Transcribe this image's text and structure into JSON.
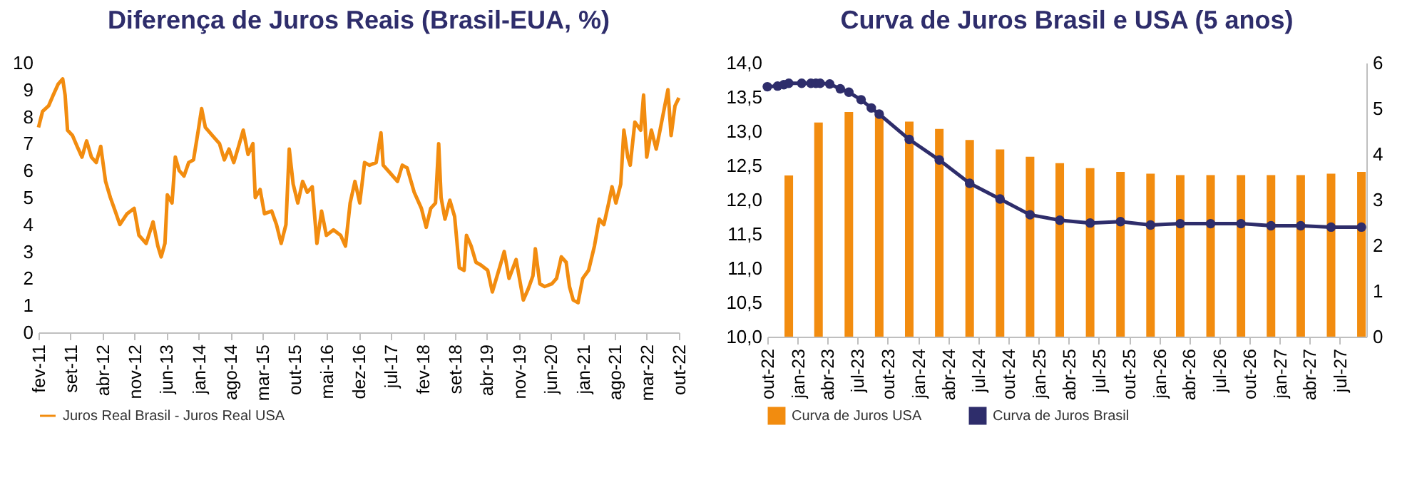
{
  "chart_data": [
    {
      "type": "line",
      "title": "Diferença de Juros Reais (Brasil-EUA, %)",
      "x": [
        "2011-02-01",
        "2011-02-28",
        "2011-04-09",
        "2011-05-10",
        "2011-06-11",
        "2011-07-12",
        "2011-07-28",
        "2011-08-13",
        "2011-09-15",
        "2011-10-16",
        "2011-11-17",
        "2011-12-18",
        "2012-01-19",
        "2012-02-20",
        "2012-03-21",
        "2012-04-22",
        "2012-05-24",
        "2012-06-25",
        "2012-07-26",
        "2012-09-12",
        "2012-10-29",
        "2012-11-30",
        "2013-01-17",
        "2013-03-04",
        "2013-04-05",
        "2013-04-27",
        "2013-05-22",
        "2013-06-07",
        "2013-07-08",
        "2013-07-30",
        "2013-08-25",
        "2013-09-26",
        "2013-10-27",
        "2013-11-28",
        "2013-12-30",
        "2014-01-21",
        "2014-02-15",
        "2014-04-03",
        "2014-05-20",
        "2014-06-21",
        "2014-07-22",
        "2014-08-23",
        "2014-09-24",
        "2014-10-25",
        "2014-11-26",
        "2014-12-28",
        "2015-01-13",
        "2015-02-14",
        "2015-03-15",
        "2015-05-02",
        "2015-06-03",
        "2015-07-04",
        "2015-08-05",
        "2015-08-27",
        "2015-09-22",
        "2015-10-23",
        "2015-11-24",
        "2015-12-25",
        "2016-01-27",
        "2016-02-27",
        "2016-03-29",
        "2016-04-30",
        "2016-06-16",
        "2016-08-03",
        "2016-09-04",
        "2016-10-05",
        "2016-11-06",
        "2016-12-08",
        "2017-01-09",
        "2017-02-10",
        "2017-03-27",
        "2017-04-28",
        "2017-05-13",
        "2017-06-30",
        "2017-08-16",
        "2017-09-17",
        "2017-10-19",
        "2017-12-05",
        "2018-01-22",
        "2018-02-23",
        "2018-03-25",
        "2018-04-26",
        "2018-05-17",
        "2018-06-02",
        "2018-06-28",
        "2018-07-30",
        "2018-08-31",
        "2018-10-01",
        "2018-11-02",
        "2018-11-18",
        "2018-12-19",
        "2019-01-20",
        "2019-02-21",
        "2019-04-08",
        "2019-05-09",
        "2019-06-26",
        "2019-07-27",
        "2019-08-28",
        "2019-10-14",
        "2019-12-01",
        "2020-01-02",
        "2020-02-03",
        "2020-02-19",
        "2020-03-20",
        "2020-04-21",
        "2020-06-08",
        "2020-07-09",
        "2020-08-10",
        "2020-09-11",
        "2020-10-03",
        "2020-10-28",
        "2020-11-29",
        "2020-12-30",
        "2021-02-07",
        "2021-03-18",
        "2021-04-19",
        "2021-05-20",
        "2021-06-21",
        "2021-07-13",
        "2021-08-08",
        "2021-09-09",
        "2021-09-30",
        "2021-10-26",
        "2021-11-11",
        "2021-12-12",
        "2022-01-20",
        "2022-02-08",
        "2022-03-01",
        "2022-04-01",
        "2022-05-03",
        "2022-05-25",
        "2022-07-20",
        "2022-08-10",
        "2022-09-05",
        "2022-10-01"
      ],
      "series": [
        {
          "name": "Juros Real Brasil - Juros Real USA",
          "color": "#f28c0f",
          "values": [
            7.6,
            8.2,
            8.4,
            8.8,
            9.2,
            9.4,
            8.8,
            7.5,
            7.3,
            6.9,
            6.5,
            7.1,
            6.5,
            6.3,
            6.9,
            5.6,
            5.0,
            4.5,
            4.0,
            4.4,
            4.6,
            3.6,
            3.3,
            4.1,
            3.2,
            2.8,
            3.3,
            5.1,
            4.8,
            6.5,
            6.0,
            5.8,
            6.3,
            6.4,
            7.5,
            8.3,
            7.6,
            7.3,
            7.0,
            6.4,
            6.8,
            6.3,
            6.9,
            7.5,
            6.6,
            7.0,
            5.0,
            5.3,
            4.4,
            4.5,
            4.0,
            3.3,
            4.0,
            6.8,
            5.5,
            4.8,
            5.6,
            5.2,
            5.4,
            3.3,
            4.5,
            3.6,
            3.8,
            3.6,
            3.2,
            4.8,
            5.6,
            4.8,
            6.3,
            6.2,
            6.3,
            7.4,
            6.2,
            5.9,
            5.6,
            6.2,
            6.1,
            5.2,
            4.6,
            3.9,
            4.6,
            4.8,
            7.0,
            5.0,
            4.2,
            4.9,
            4.3,
            2.4,
            2.3,
            3.6,
            3.2,
            2.6,
            2.5,
            2.3,
            1.5,
            2.4,
            3.0,
            2.0,
            2.7,
            1.2,
            1.6,
            2.1,
            3.1,
            1.8,
            1.7,
            1.8,
            2.0,
            2.8,
            2.6,
            1.7,
            1.2,
            1.1,
            2.0,
            2.3,
            3.2,
            4.2,
            4.0,
            4.8,
            5.4,
            4.8,
            5.5,
            7.5,
            6.5,
            6.2,
            7.8,
            7.5,
            8.8,
            6.5,
            7.5,
            6.8,
            7.4,
            9.0,
            7.3,
            8.4,
            8.7
          ]
        }
      ],
      "xlim": [
        "2011-02-01",
        "2022-10-01"
      ],
      "xticks": [
        {
          "value": "2011-02-01",
          "label": "fev-11"
        },
        {
          "value": "2011-09-01",
          "label": "set-11"
        },
        {
          "value": "2012-04-01",
          "label": "abr-12"
        },
        {
          "value": "2012-11-01",
          "label": "nov-12"
        },
        {
          "value": "2013-06-01",
          "label": "jun-13"
        },
        {
          "value": "2014-01-01",
          "label": "jan-14"
        },
        {
          "value": "2014-08-01",
          "label": "ago-14"
        },
        {
          "value": "2015-03-01",
          "label": "mar-15"
        },
        {
          "value": "2015-10-01",
          "label": "out-15"
        },
        {
          "value": "2016-05-01",
          "label": "mai-16"
        },
        {
          "value": "2016-12-01",
          "label": "dez-16"
        },
        {
          "value": "2017-07-01",
          "label": "jul-17"
        },
        {
          "value": "2018-02-01",
          "label": "fev-18"
        },
        {
          "value": "2018-09-01",
          "label": "set-18"
        },
        {
          "value": "2019-04-01",
          "label": "abr-19"
        },
        {
          "value": "2019-11-01",
          "label": "nov-19"
        },
        {
          "value": "2020-06-01",
          "label": "jun-20"
        },
        {
          "value": "2021-01-01",
          "label": "jan-21"
        },
        {
          "value": "2021-08-01",
          "label": "ago-21"
        },
        {
          "value": "2022-03-01",
          "label": "mar-22"
        },
        {
          "value": "2022-10-01",
          "label": "out-22"
        }
      ],
      "ylim": [
        0,
        10
      ],
      "yticks": [
        0,
        1,
        2,
        3,
        4,
        5,
        6,
        7,
        8,
        9,
        10
      ],
      "grid": false,
      "legend": "bottom"
    },
    {
      "type": "bar",
      "title": "Curva de Juros Brasil e USA (5 anos)",
      "series": [
        {
          "name": "Curva de Juros USA",
          "axis": "y2",
          "color": "#f28c0f",
          "x": [
            "2022-12-05",
            "2023-03-05",
            "2023-06-05",
            "2023-09-05",
            "2023-12-05",
            "2024-03-05",
            "2024-06-05",
            "2024-09-05",
            "2024-12-05",
            "2025-03-05",
            "2025-06-05",
            "2025-09-05",
            "2025-12-05",
            "2026-03-05",
            "2026-06-05",
            "2026-09-05",
            "2026-12-05",
            "2027-03-05",
            "2027-06-05",
            "2027-09-05"
          ],
          "values": [
            3.53,
            4.69,
            4.92,
            4.9,
            4.71,
            4.55,
            4.31,
            4.1,
            3.94,
            3.8,
            3.69,
            3.61,
            3.57,
            3.54,
            3.54,
            3.54,
            3.54,
            3.54,
            3.57,
            3.61
          ]
        },
        {
          "name": "Curva de Juros Brasil",
          "type": "line",
          "color": "#2e2d6b",
          "x": [
            "2022-10-01",
            "2022-11-01",
            "2022-11-20",
            "2022-12-05",
            "2023-01-13",
            "2023-02-10",
            "2023-02-25",
            "2023-03-10",
            "2023-04-08",
            "2023-05-10",
            "2023-06-05",
            "2023-07-12",
            "2023-08-12",
            "2023-09-05",
            "2023-12-05",
            "2024-03-05",
            "2024-06-05",
            "2024-09-05",
            "2024-12-05",
            "2025-03-05",
            "2025-06-05",
            "2025-09-05",
            "2025-12-05",
            "2026-03-05",
            "2026-06-05",
            "2026-09-05",
            "2026-12-05",
            "2027-03-05",
            "2027-06-05",
            "2027-09-05"
          ],
          "values": [
            13.65,
            13.66,
            13.68,
            13.7,
            13.7,
            13.7,
            13.7,
            13.7,
            13.69,
            13.62,
            13.57,
            13.46,
            13.34,
            13.25,
            12.88,
            12.58,
            12.24,
            12.01,
            11.78,
            11.7,
            11.66,
            11.68,
            11.63,
            11.65,
            11.65,
            11.65,
            11.62,
            11.62,
            11.6,
            11.6
          ]
        }
      ],
      "xlim": [
        "2022-10-01",
        "2027-09-20"
      ],
      "xticks": [
        {
          "value": "2022-10-01",
          "label": "out-22"
        },
        {
          "value": "2023-01-01",
          "label": "jan-23"
        },
        {
          "value": "2023-04-01",
          "label": "abr-23"
        },
        {
          "value": "2023-07-01",
          "label": "jul-23"
        },
        {
          "value": "2023-10-01",
          "label": "out-23"
        },
        {
          "value": "2024-01-01",
          "label": "jan-24"
        },
        {
          "value": "2024-04-01",
          "label": "abr-24"
        },
        {
          "value": "2024-07-01",
          "label": "jul-24"
        },
        {
          "value": "2024-10-01",
          "label": "out-24"
        },
        {
          "value": "2025-01-01",
          "label": "jan-25"
        },
        {
          "value": "2025-04-01",
          "label": "abr-25"
        },
        {
          "value": "2025-07-01",
          "label": "jul-25"
        },
        {
          "value": "2025-10-01",
          "label": "out-25"
        },
        {
          "value": "2026-01-01",
          "label": "jan-26"
        },
        {
          "value": "2026-04-01",
          "label": "abr-26"
        },
        {
          "value": "2026-07-01",
          "label": "jul-26"
        },
        {
          "value": "2026-10-01",
          "label": "out-26"
        },
        {
          "value": "2027-01-01",
          "label": "jan-27"
        },
        {
          "value": "2027-04-01",
          "label": "abr-27"
        },
        {
          "value": "2027-07-01",
          "label": "jul-27"
        }
      ],
      "ylim": [
        10,
        14
      ],
      "yticks": [
        {
          "value": 10,
          "label": "10,0"
        },
        {
          "value": 10.5,
          "label": "10,5"
        },
        {
          "value": 11,
          "label": "11,0"
        },
        {
          "value": 11.5,
          "label": "11,5"
        },
        {
          "value": 12,
          "label": "12,0"
        },
        {
          "value": 12.5,
          "label": "12,5"
        },
        {
          "value": 13,
          "label": "13,0"
        },
        {
          "value": 13.5,
          "label": "13,5"
        },
        {
          "value": 14,
          "label": "14,0"
        }
      ],
      "y2lim": [
        0,
        6
      ],
      "y2ticks": [
        0,
        1,
        2,
        3,
        4,
        5,
        6
      ],
      "grid": false,
      "legend": "bottom",
      "marker": "circle"
    }
  ]
}
